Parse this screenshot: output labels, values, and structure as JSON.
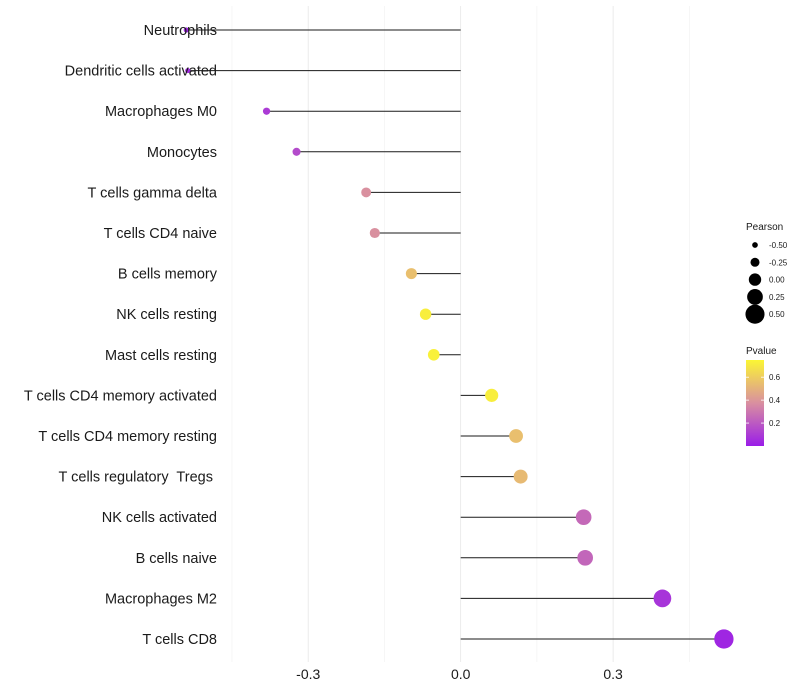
{
  "chart_data": {
    "type": "lollipop",
    "title": "",
    "xlabel": "",
    "ylabel": "",
    "xlim": [
      -0.45,
      0.53
    ],
    "x_ticks": [
      -0.3,
      0.0,
      0.3
    ],
    "x_tick_labels": [
      "-0.3",
      "0.0",
      "0.3"
    ],
    "grid": true,
    "categories": [
      "Neutrophils",
      "Dendritic cells activated",
      "Macrophages M0",
      "Monocytes",
      "T cells gamma delta",
      "T cells CD4 naive",
      "B cells memory",
      "NK cells resting",
      "Mast cells resting",
      "T cells CD4 memory activated",
      "T cells CD4 memory resting",
      "T cells regulatory  Tregs ",
      "NK cells activated",
      "B cells naive",
      "Macrophages M2",
      "T cells CD8"
    ],
    "pearson": [
      -0.54,
      -0.537,
      -0.382,
      -0.323,
      -0.186,
      -0.169,
      -0.097,
      -0.069,
      -0.053,
      0.061,
      0.109,
      0.118,
      0.242,
      0.245,
      0.397,
      0.518
    ],
    "pvalue": [
      0.03,
      0.04,
      0.1,
      0.15,
      0.38,
      0.38,
      0.55,
      0.72,
      0.73,
      0.72,
      0.55,
      0.53,
      0.25,
      0.24,
      0.08,
      0.03
    ],
    "color_scale": {
      "low": "#9a1de8",
      "mid": "#d98fa0",
      "high": "#fbf634"
    },
    "legend_position": "right",
    "legend": {
      "size_title": "Pearson",
      "size_values": [
        -0.5,
        -0.25,
        0.0,
        0.25,
        0.5
      ],
      "size_labels": [
        "-0.50",
        "-0.25",
        "0.00",
        "0.25",
        "0.50"
      ],
      "color_title": "Pvalue",
      "color_range": [
        0.0,
        0.75
      ],
      "color_ticks": [
        0.2,
        0.4,
        0.6
      ],
      "color_tick_labels": [
        "0.2",
        "0.4",
        "0.6"
      ]
    }
  }
}
